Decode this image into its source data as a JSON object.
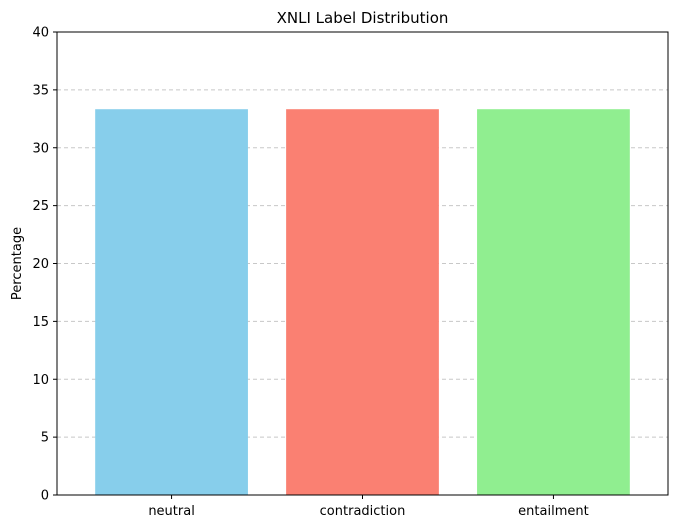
{
  "chart_data": {
    "type": "bar",
    "title": "XNLI Label Distribution",
    "xlabel": "",
    "ylabel": "Percentage",
    "categories": [
      "neutral",
      "contradiction",
      "entailment"
    ],
    "values": [
      33.33,
      33.33,
      33.33
    ],
    "colors": [
      "#87CEEB",
      "#FA8072",
      "#90EE90"
    ],
    "ylim": [
      0,
      40
    ],
    "yticks": [
      0,
      5,
      10,
      15,
      20,
      25,
      30,
      35,
      40
    ],
    "ytick_labels": [
      "0",
      "5",
      "10",
      "15",
      "20",
      "25",
      "30",
      "35",
      "40"
    ],
    "grid": "y-axis dashed",
    "legend": "none"
  }
}
